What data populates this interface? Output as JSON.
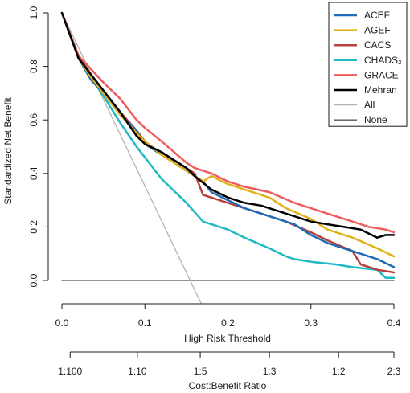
{
  "chart_data": {
    "type": "line",
    "xlabel": "High Risk Threshold",
    "ylabel": "Standardized Net Benefit",
    "x2label": "Cost:Benefit Ratio",
    "xlim": [
      0,
      0.4
    ],
    "ylim": [
      0,
      1.0
    ],
    "x_ticks": [
      "0.0",
      "0.1",
      "0.2",
      "0.3",
      "0.4"
    ],
    "y_ticks": [
      "0.0",
      "0.2",
      "0.4",
      "0.6",
      "0.8",
      "1.0"
    ],
    "x2_ticks": [
      "1:100",
      "1:10",
      "1:5",
      "1:3",
      "1:2",
      "2:3"
    ],
    "legend_position": "top-right",
    "grid": false,
    "series": [
      {
        "name": "ACEF",
        "color": "#1f6bb5",
        "width": 2.5,
        "x": [
          0,
          0.02,
          0.035,
          0.05,
          0.07,
          0.09,
          0.1,
          0.12,
          0.135,
          0.15,
          0.16,
          0.17,
          0.18,
          0.2,
          0.22,
          0.25,
          0.28,
          0.3,
          0.32,
          0.35,
          0.38,
          0.4
        ],
        "y": [
          1.0,
          0.83,
          0.75,
          0.7,
          0.62,
          0.56,
          0.51,
          0.47,
          0.44,
          0.41,
          0.39,
          0.37,
          0.33,
          0.3,
          0.27,
          0.24,
          0.21,
          0.17,
          0.14,
          0.11,
          0.08,
          0.05
        ]
      },
      {
        "name": "AGEF",
        "color": "#e0b21c",
        "width": 2.5,
        "x": [
          0,
          0.02,
          0.035,
          0.05,
          0.07,
          0.09,
          0.1,
          0.12,
          0.135,
          0.15,
          0.16,
          0.17,
          0.18,
          0.2,
          0.22,
          0.25,
          0.27,
          0.3,
          0.32,
          0.35,
          0.38,
          0.4
        ],
        "y": [
          1.0,
          0.83,
          0.76,
          0.7,
          0.62,
          0.55,
          0.52,
          0.47,
          0.44,
          0.41,
          0.39,
          0.37,
          0.39,
          0.36,
          0.34,
          0.31,
          0.27,
          0.23,
          0.19,
          0.16,
          0.12,
          0.09
        ]
      },
      {
        "name": "CACS",
        "color": "#b5413a",
        "width": 2.5,
        "x": [
          0,
          0.02,
          0.035,
          0.05,
          0.07,
          0.09,
          0.1,
          0.12,
          0.135,
          0.15,
          0.16,
          0.17,
          0.2,
          0.22,
          0.25,
          0.27,
          0.3,
          0.32,
          0.35,
          0.36,
          0.38,
          0.4
        ],
        "y": [
          1.0,
          0.84,
          0.77,
          0.7,
          0.63,
          0.56,
          0.52,
          0.47,
          0.45,
          0.42,
          0.4,
          0.32,
          0.29,
          0.27,
          0.24,
          0.22,
          0.18,
          0.15,
          0.11,
          0.06,
          0.04,
          0.03
        ]
      },
      {
        "name": "CHADS₂",
        "color": "#1fbac4",
        "width": 2.5,
        "x": [
          0,
          0.02,
          0.035,
          0.05,
          0.07,
          0.09,
          0.12,
          0.15,
          0.17,
          0.2,
          0.22,
          0.25,
          0.27,
          0.28,
          0.3,
          0.33,
          0.35,
          0.38,
          0.39,
          0.4
        ],
        "y": [
          1.0,
          0.83,
          0.76,
          0.69,
          0.59,
          0.5,
          0.38,
          0.29,
          0.22,
          0.19,
          0.16,
          0.12,
          0.09,
          0.08,
          0.07,
          0.06,
          0.05,
          0.04,
          0.01,
          0.01
        ]
      },
      {
        "name": "GRACE",
        "color": "#ef5c5c",
        "width": 2.5,
        "x": [
          0,
          0.02,
          0.035,
          0.05,
          0.07,
          0.09,
          0.1,
          0.12,
          0.135,
          0.15,
          0.16,
          0.18,
          0.2,
          0.22,
          0.25,
          0.28,
          0.3,
          0.32,
          0.35,
          0.37,
          0.39,
          0.4
        ],
        "y": [
          1.0,
          0.84,
          0.79,
          0.74,
          0.68,
          0.6,
          0.57,
          0.52,
          0.48,
          0.44,
          0.42,
          0.4,
          0.37,
          0.35,
          0.33,
          0.29,
          0.27,
          0.25,
          0.22,
          0.2,
          0.19,
          0.18
        ]
      },
      {
        "name": "Mehran",
        "color": "#000000",
        "width": 2.5,
        "x": [
          0,
          0.02,
          0.035,
          0.05,
          0.07,
          0.09,
          0.1,
          0.12,
          0.135,
          0.15,
          0.16,
          0.18,
          0.2,
          0.22,
          0.24,
          0.26,
          0.28,
          0.3,
          0.32,
          0.34,
          0.36,
          0.38,
          0.39,
          0.4
        ],
        "y": [
          1.0,
          0.83,
          0.77,
          0.71,
          0.63,
          0.54,
          0.51,
          0.48,
          0.45,
          0.42,
          0.39,
          0.34,
          0.31,
          0.29,
          0.28,
          0.26,
          0.24,
          0.22,
          0.21,
          0.2,
          0.19,
          0.16,
          0.17,
          0.17
        ]
      },
      {
        "name": "All",
        "color": "#b3b3b3",
        "width": 1.3,
        "x": [
          0,
          0.17
        ],
        "y": [
          1.0,
          -0.1
        ]
      },
      {
        "name": "None",
        "color": "#555555",
        "width": 1.3,
        "x": [
          0,
          0.4
        ],
        "y": [
          0,
          0
        ]
      }
    ]
  }
}
